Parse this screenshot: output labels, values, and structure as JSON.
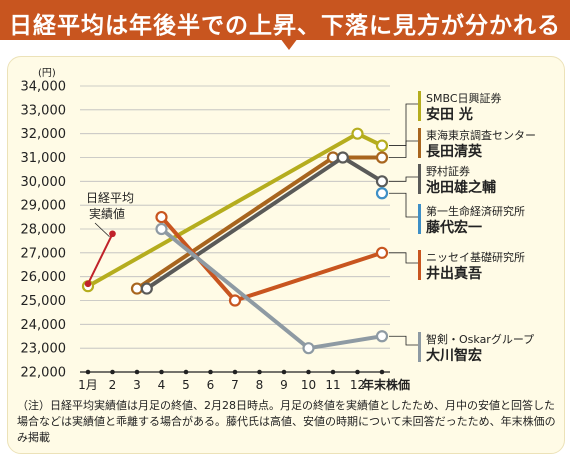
{
  "header": {
    "title": "日経平均は年後半での上昇、下落に見方が分かれる"
  },
  "note": "（注）日経平均実績値は月足の終値、2月28日時点。月足の終値を実績値としたため、月中の安値と回答した場合などは実績値と乖離する場合がある。藤代氏は高値、安値の時期について未回答だったため、年末株価のみ掲載",
  "chart_data": {
    "type": "line",
    "y_unit": "(円)",
    "ylim": [
      22000,
      34000
    ],
    "y_ticks": [
      22000,
      23000,
      24000,
      25000,
      26000,
      27000,
      28000,
      29000,
      30000,
      31000,
      32000,
      33000,
      34000
    ],
    "y_tick_labels": [
      "22,000",
      "23,000",
      "24,000",
      "25,000",
      "26,000",
      "27,000",
      "28,000",
      "29,000",
      "30,000",
      "31,000",
      "32,000",
      "33,000",
      "34,000"
    ],
    "x_ticks": [
      1,
      2,
      3,
      4,
      5,
      6,
      7,
      8,
      9,
      10,
      11,
      12,
      13
    ],
    "x_tick_labels": [
      "1月",
      "2",
      "3",
      "4",
      "5",
      "6",
      "7",
      "8",
      "9",
      "10",
      "11",
      "12",
      "年末株価"
    ],
    "grid": "horizontal",
    "actual": {
      "label_lines": [
        "日経平均",
        "実績値"
      ],
      "color": "#c0222a",
      "points": [
        [
          1,
          25700
        ],
        [
          2,
          27800
        ]
      ]
    },
    "series": [
      {
        "firm": "SMBC日興証券",
        "name": "安田 光",
        "color": "#b5ad1e",
        "points": [
          [
            1,
            25600
          ],
          [
            12,
            32000
          ],
          [
            13,
            31500
          ]
        ]
      },
      {
        "firm": "東海東京調査センター",
        "name": "長田清英",
        "color": "#a8651e",
        "points": [
          [
            3,
            25500
          ],
          [
            11,
            31000
          ],
          [
            13,
            31000
          ]
        ]
      },
      {
        "firm": "野村証券",
        "name": "池田雄之輔",
        "color": "#5a5a58",
        "points": [
          [
            3.4,
            25500
          ],
          [
            11.4,
            31000
          ],
          [
            13,
            30000
          ]
        ]
      },
      {
        "firm": "第一生命経済研究所",
        "name": "藤代宏一",
        "color": "#3e8fc6",
        "points": [
          [
            13,
            29500
          ]
        ]
      },
      {
        "firm": "ニッセイ基礎研究所",
        "name": "井出真吾",
        "color": "#c8551f",
        "points": [
          [
            4,
            28500
          ],
          [
            7,
            25000
          ],
          [
            13,
            27000
          ]
        ]
      },
      {
        "firm": "智剣・Oskarグループ",
        "name": "大川智宏",
        "color": "#8e9aa3",
        "points": [
          [
            4,
            28000
          ],
          [
            10,
            23000
          ],
          [
            13,
            23500
          ]
        ]
      }
    ]
  }
}
